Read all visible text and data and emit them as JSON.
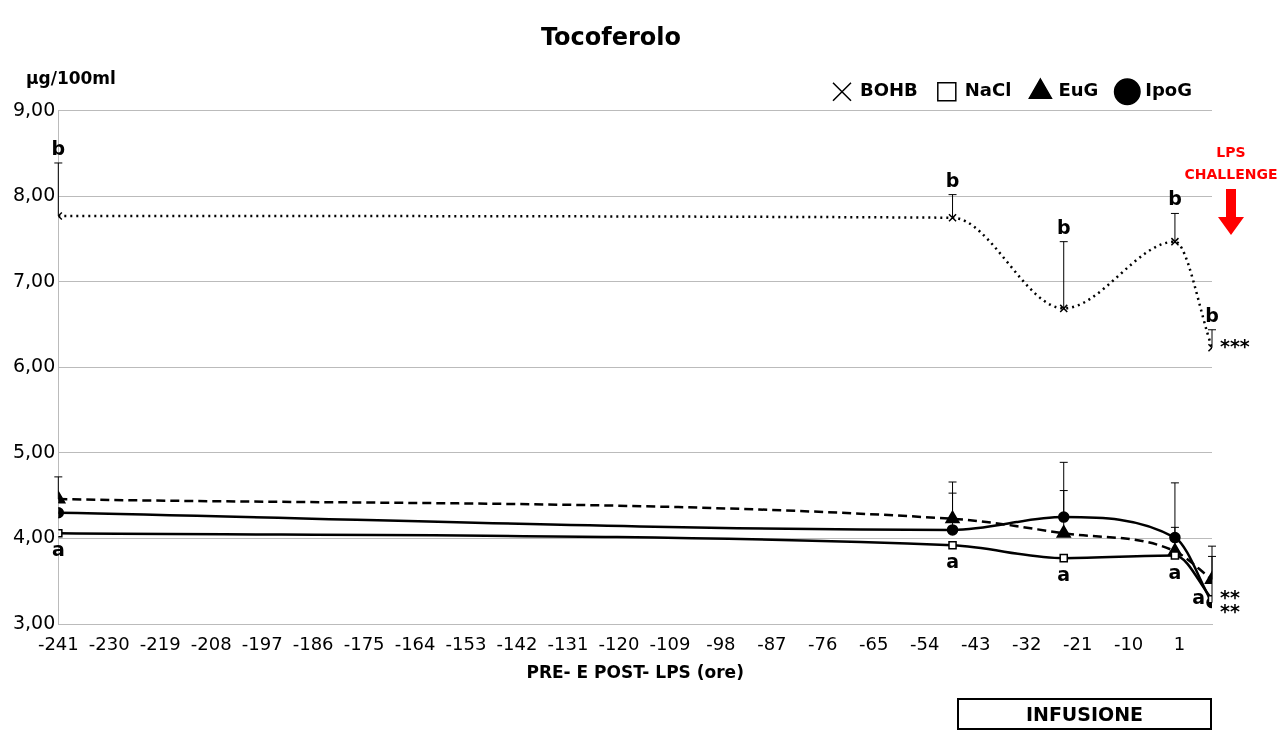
{
  "chart_data": {
    "type": "line",
    "title": "Tocoferolo",
    "ylabel": "µg/100ml",
    "xlabel": "PRE- E POST- LPS (ore)",
    "x": [
      -241,
      -48,
      -24,
      0,
      8
    ],
    "xlim": [
      -241,
      8
    ],
    "xticks": [
      -241,
      -230,
      -219,
      -208,
      -197,
      -186,
      -175,
      -164,
      -153,
      -142,
      -131,
      -120,
      -109,
      -98,
      -87,
      -76,
      -65,
      -54,
      -43,
      -32,
      -21,
      -10,
      1
    ],
    "ylim": [
      3,
      9
    ],
    "yticks": [
      {
        "value": 3,
        "label": "3,00"
      },
      {
        "value": 4,
        "label": "4,00"
      },
      {
        "value": 5,
        "label": "5,00"
      },
      {
        "value": 6,
        "label": "6,00"
      },
      {
        "value": 7,
        "label": "7,00"
      },
      {
        "value": 8,
        "label": "8,00"
      },
      {
        "value": 9,
        "label": "9,00"
      }
    ],
    "grid": "y",
    "legend": "top right",
    "series": [
      {
        "name": "BOHB",
        "color": "#000000",
        "marker": "cross",
        "line_style": "dotted",
        "values": [
          7.77,
          7.75,
          6.69,
          7.47,
          6.23
        ],
        "errors": [
          [
            7.77,
            8.39
          ],
          [
            7.75,
            8.02
          ],
          [
            6.69,
            7.47
          ],
          [
            7.47,
            7.8
          ],
          [
            6.23,
            6.44
          ]
        ]
      },
      {
        "name": "NaCl",
        "color": "#000000",
        "marker": "square",
        "line_style": "solid",
        "values": [
          4.06,
          3.92,
          3.77,
          3.8,
          3.29
        ]
      },
      {
        "name": "EuG",
        "color": "#000000",
        "marker": "triangle",
        "line_style": "dashed",
        "values": [
          4.46,
          4.23,
          4.06,
          3.85,
          3.52
        ],
        "errors": [
          [
            4.46,
            4.72
          ],
          [
            4.23,
            4.66
          ],
          [
            4.06,
            4.56
          ],
          [
            3.85,
            4.13
          ],
          [
            3.52,
            3.91
          ]
        ]
      },
      {
        "name": "IpoG",
        "color": "#000000",
        "marker": "circle",
        "line_style": "solid",
        "values": [
          4.3,
          4.1,
          4.25,
          4.01,
          3.25
        ],
        "errors": [
          null,
          [
            4.1,
            4.53
          ],
          [
            4.25,
            4.89
          ],
          [
            4.01,
            4.65
          ],
          [
            3.25,
            3.79
          ]
        ]
      }
    ],
    "annotations": [
      {
        "text": "b",
        "x": -241,
        "y": 7.77
      },
      {
        "text": "b",
        "x": -48,
        "y": 7.75
      },
      {
        "text": "b",
        "x": -24,
        "y": 7.47
      },
      {
        "text": "b",
        "x": 0,
        "y": 7.47
      },
      {
        "text": "b",
        "x": 8,
        "y": 6.23
      },
      {
        "text": "***",
        "x": 8,
        "y": 6.23
      },
      {
        "text": "a",
        "x": -241,
        "y": 4.06
      },
      {
        "text": "a",
        "x": -48,
        "y": 3.92
      },
      {
        "text": "a",
        "x": -24,
        "y": 3.77
      },
      {
        "text": "a",
        "x": 0,
        "y": 3.8
      },
      {
        "text": "a",
        "x": 8,
        "y": 3.29
      },
      {
        "text": "**",
        "x": 8,
        "y": 3.29
      },
      {
        "text": "**",
        "x": 8,
        "y": 3.29
      },
      "LPS CHALLENGE",
      "INFUSIONE"
    ]
  }
}
